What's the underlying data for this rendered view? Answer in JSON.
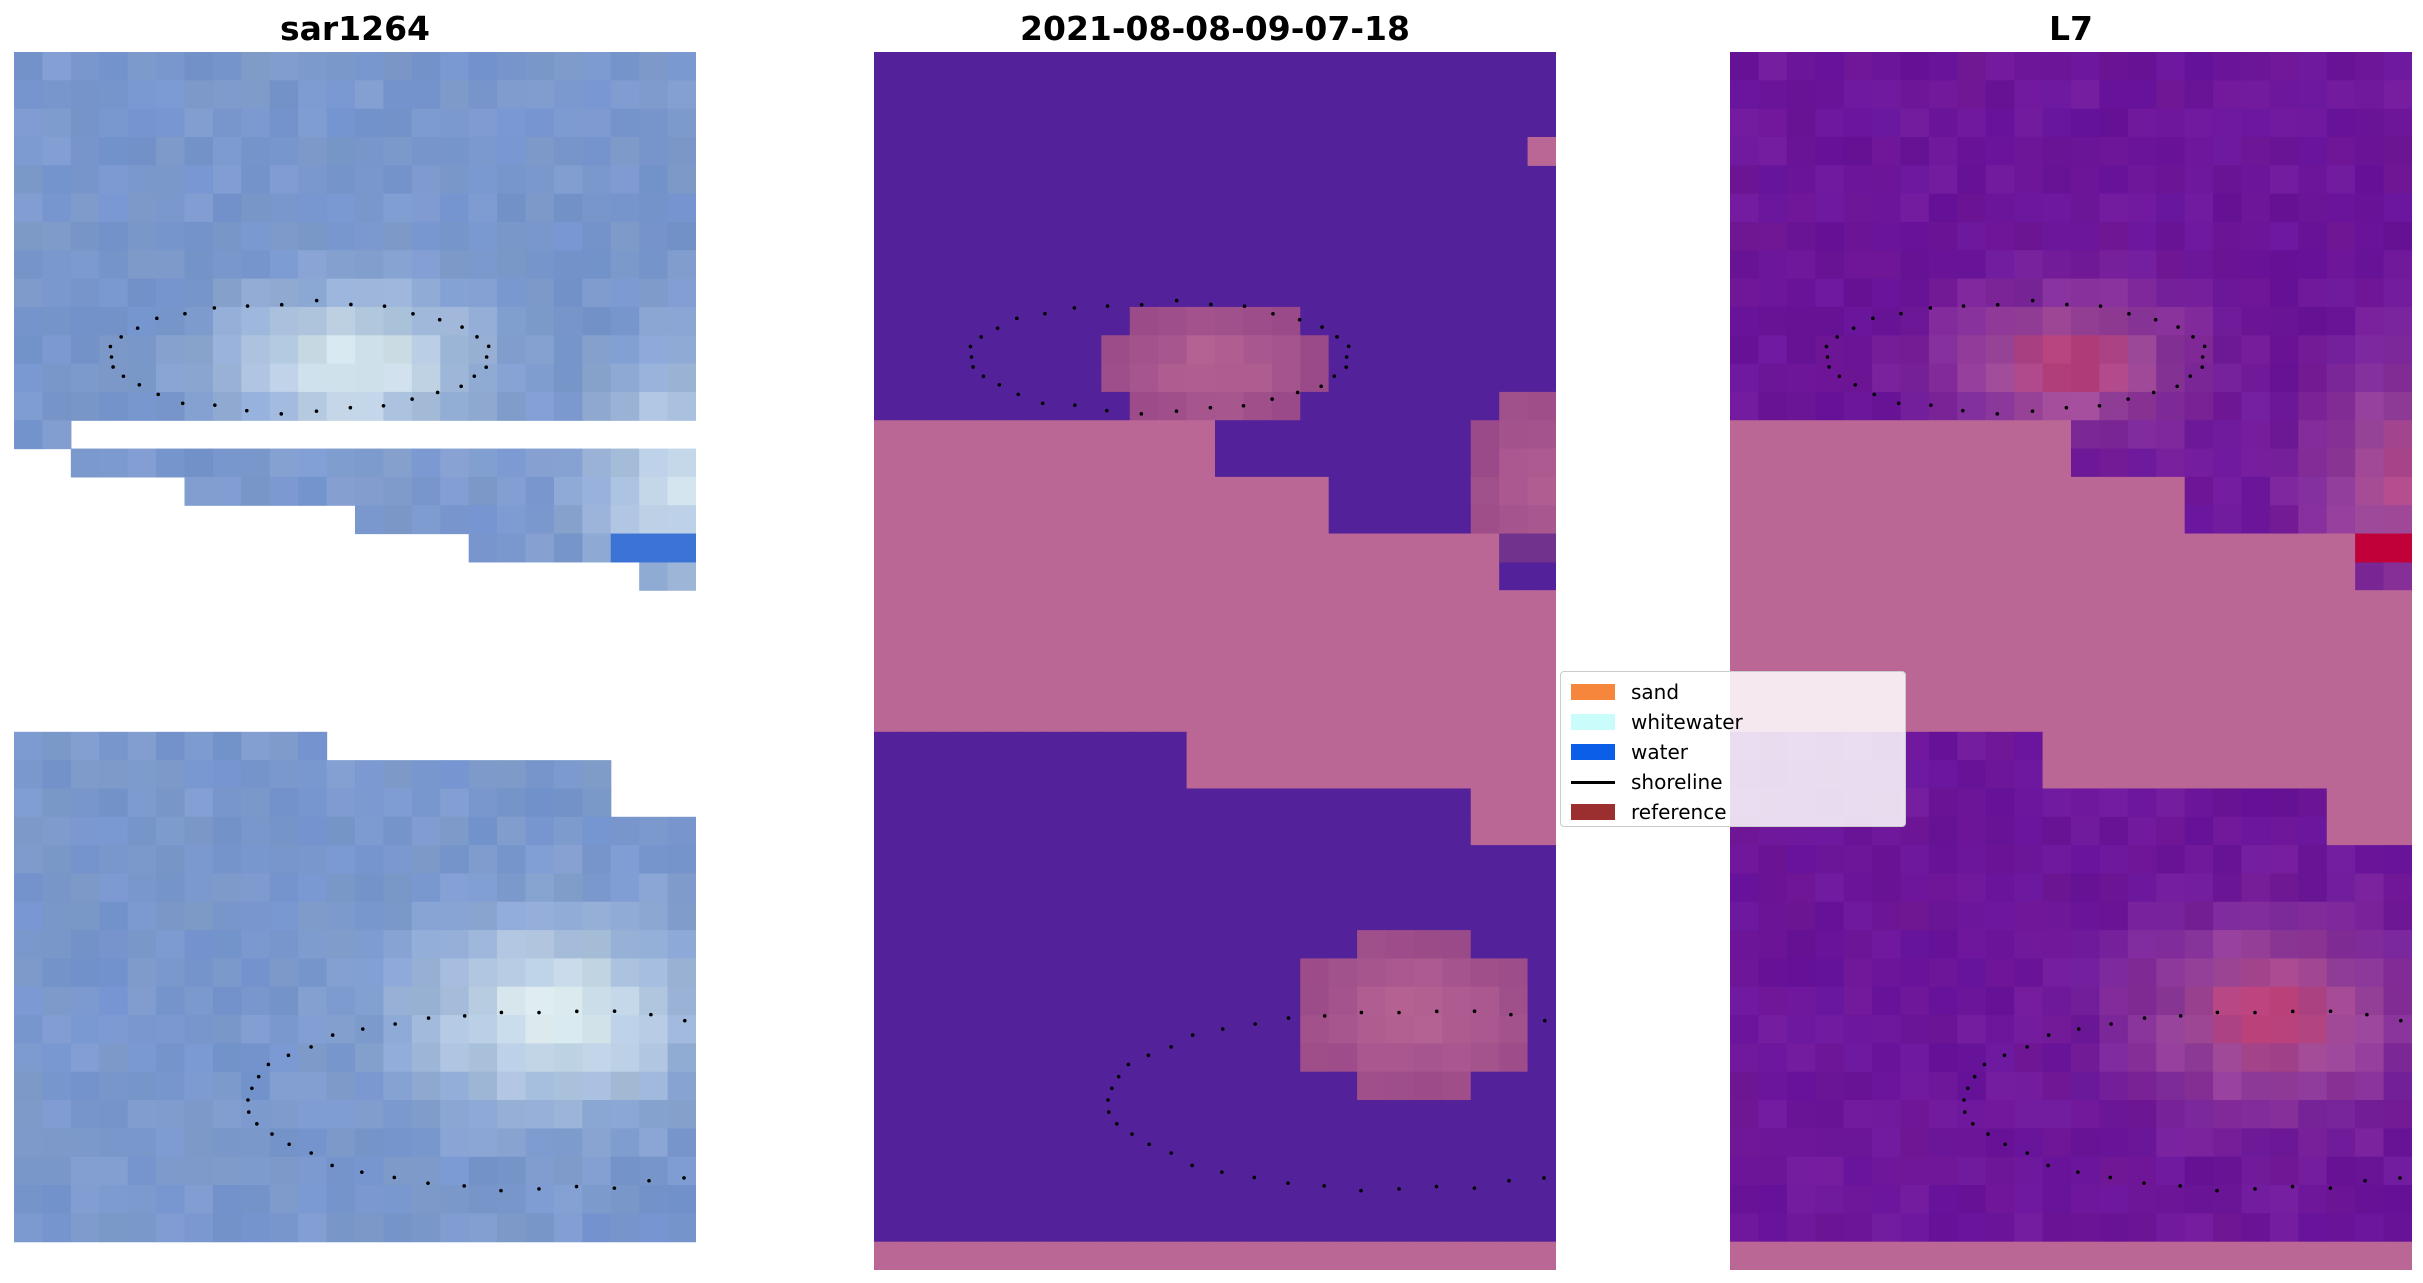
{
  "panels": [
    {
      "title": "sar1264",
      "kind": "rgb"
    },
    {
      "title": "2021-08-08-09-07-18",
      "kind": "classified"
    },
    {
      "title": "L7",
      "kind": "mndwi"
    }
  ],
  "legend": {
    "items": [
      {
        "label": "sand",
        "color": "#f7863d",
        "type": "patch"
      },
      {
        "label": "whitewater",
        "color": "#c9fcfb",
        "type": "patch"
      },
      {
        "label": "water",
        "color": "#0a5ee8",
        "type": "patch"
      },
      {
        "label": "shoreline",
        "color": "#000000",
        "type": "line"
      },
      {
        "label": "reference",
        "color": "#9b2f2f",
        "type": "patch"
      }
    ]
  },
  "colors": {
    "rgb_base": "#7896cc",
    "rgb_bright": "#dfeef0",
    "class_water": "#53229a",
    "class_land": "#bb6796",
    "class_mix": "#9a4a88",
    "mndwi_base": "#6a149a",
    "mndwi_land": "#bb6796",
    "mndwi_hot": "#c1003a",
    "shoreline": "#000000"
  }
}
